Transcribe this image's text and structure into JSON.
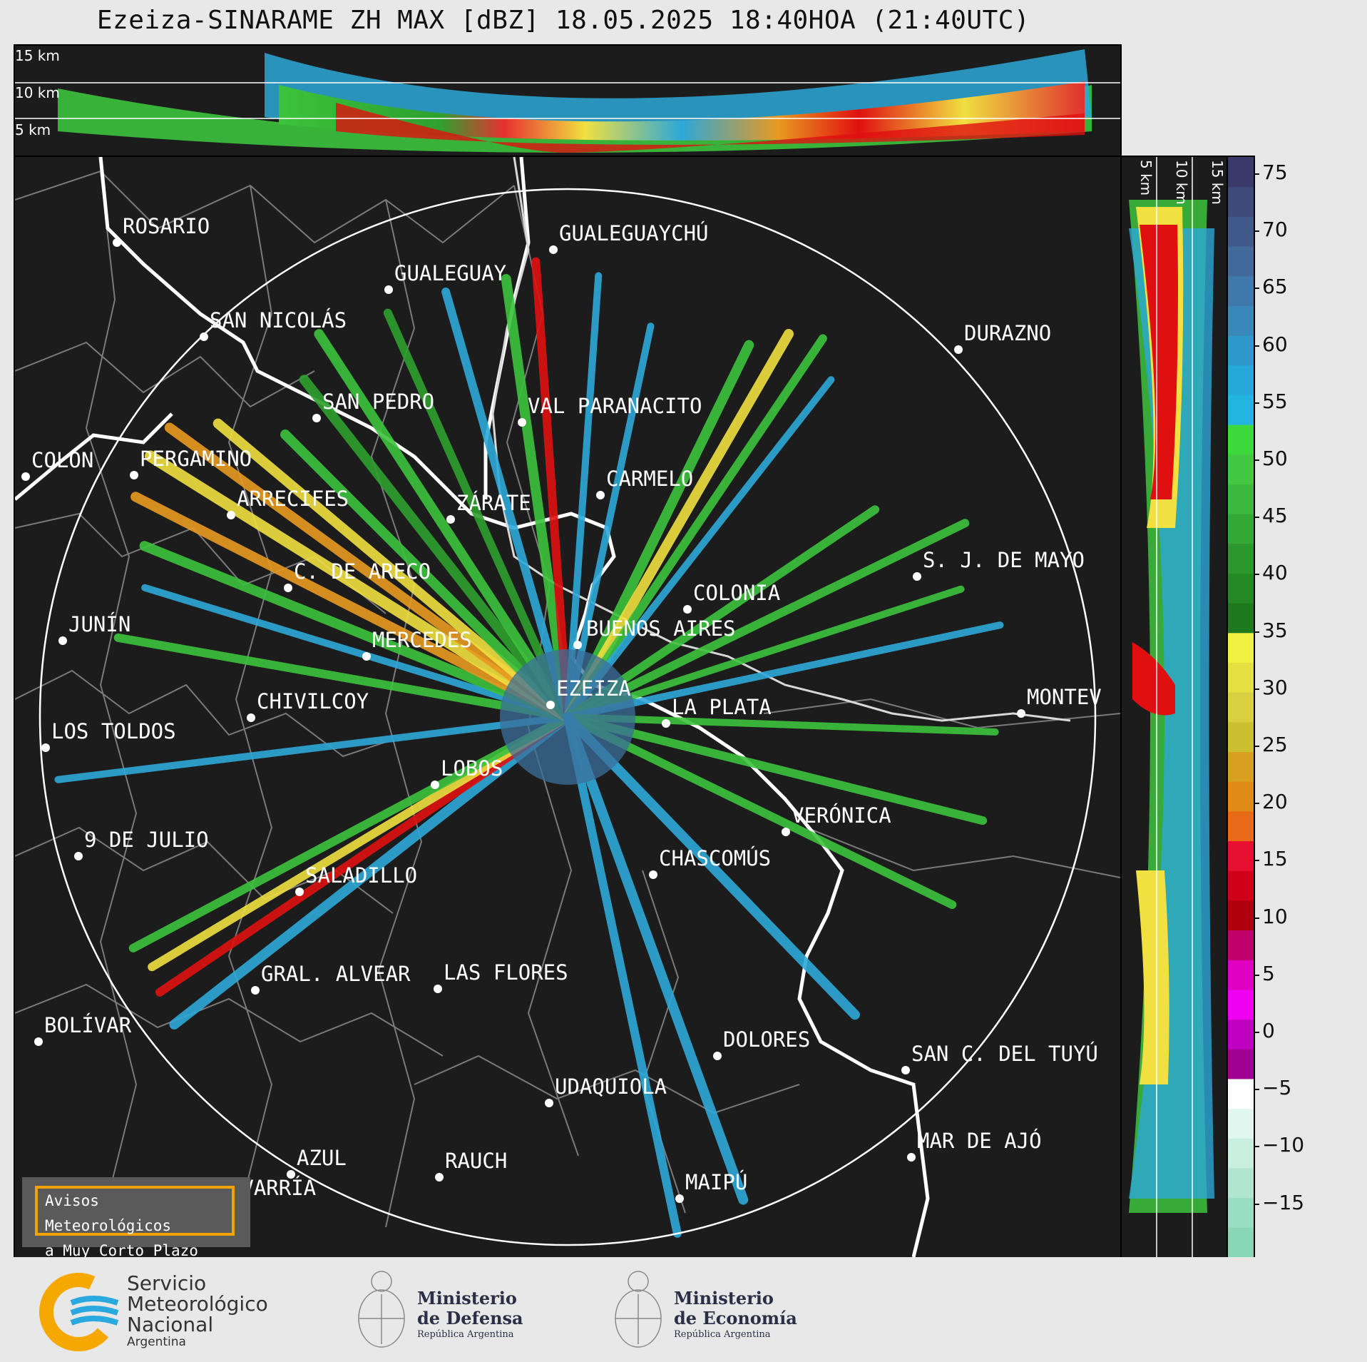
{
  "title": "Ezeiza-SINARAME ZH MAX [dBZ] 18.05.2025 18:40HOA (21:40UTC)",
  "height_labels": [
    "15 km",
    "10 km",
    "5 km"
  ],
  "side_height_labels": [
    "5 km",
    "10 km",
    "15 km"
  ],
  "colorbar": {
    "unit": "dBZ",
    "ticks": [
      "75",
      "70",
      "65",
      "60",
      "55",
      "50",
      "45",
      "40",
      "35",
      "30",
      "25",
      "20",
      "15",
      "10",
      "5",
      "0",
      "−5",
      "−10",
      "−15"
    ]
  },
  "cities": [
    {
      "name": "ROSARIO"
    },
    {
      "name": "GUALEGUAYCHÚ"
    },
    {
      "name": "GUALEGUAY"
    },
    {
      "name": "SAN NICOLÁS"
    },
    {
      "name": "DURAZNO"
    },
    {
      "name": "SAN PEDRO"
    },
    {
      "name": "VAL PARANACITO"
    },
    {
      "name": "COLON"
    },
    {
      "name": "PERGAMINO"
    },
    {
      "name": "CARMELO"
    },
    {
      "name": "ARRECIFES"
    },
    {
      "name": "ZÁRATE"
    },
    {
      "name": "S. J. DE MAYO"
    },
    {
      "name": "C. DE ARECO"
    },
    {
      "name": "COLONIA"
    },
    {
      "name": "JUNÍN"
    },
    {
      "name": "BUENOS AIRES"
    },
    {
      "name": "MERCEDES"
    },
    {
      "name": "EZEIZA"
    },
    {
      "name": "MONTEV"
    },
    {
      "name": "CHIVILCOY"
    },
    {
      "name": "LA PLATA"
    },
    {
      "name": "LOS TOLDOS"
    },
    {
      "name": "LOBOS"
    },
    {
      "name": "VERÓNICA"
    },
    {
      "name": "9 DE JULIO"
    },
    {
      "name": "SALADILLO"
    },
    {
      "name": "CHASCOMÚS"
    },
    {
      "name": "GRAL. ALVEAR"
    },
    {
      "name": "LAS FLORES"
    },
    {
      "name": "BOLÍVAR"
    },
    {
      "name": "DOLORES"
    },
    {
      "name": "SAN C. DEL TUYÚ"
    },
    {
      "name": "UDAQUIOLA"
    },
    {
      "name": "MAR DE AJÓ"
    },
    {
      "name": "AZUL"
    },
    {
      "name": "RAUCH"
    },
    {
      "name": "OLAVARRÍA"
    },
    {
      "name": "MAIPÚ"
    }
  ],
  "warning_box": {
    "line1": "Avisos Meteorológicos",
    "line2": "a Muy Corto Plazo"
  },
  "logos": {
    "smn": {
      "l1": "Servicio",
      "l2": "Meteorológico",
      "l3": "Nacional",
      "l4": "Argentina"
    },
    "defensa": {
      "l1": "Ministerio",
      "l2": "de Defensa",
      "l3": "República Argentina"
    },
    "economia": {
      "l1": "Ministerio",
      "l2": "de Economía",
      "l3": "República Argentina"
    }
  }
}
